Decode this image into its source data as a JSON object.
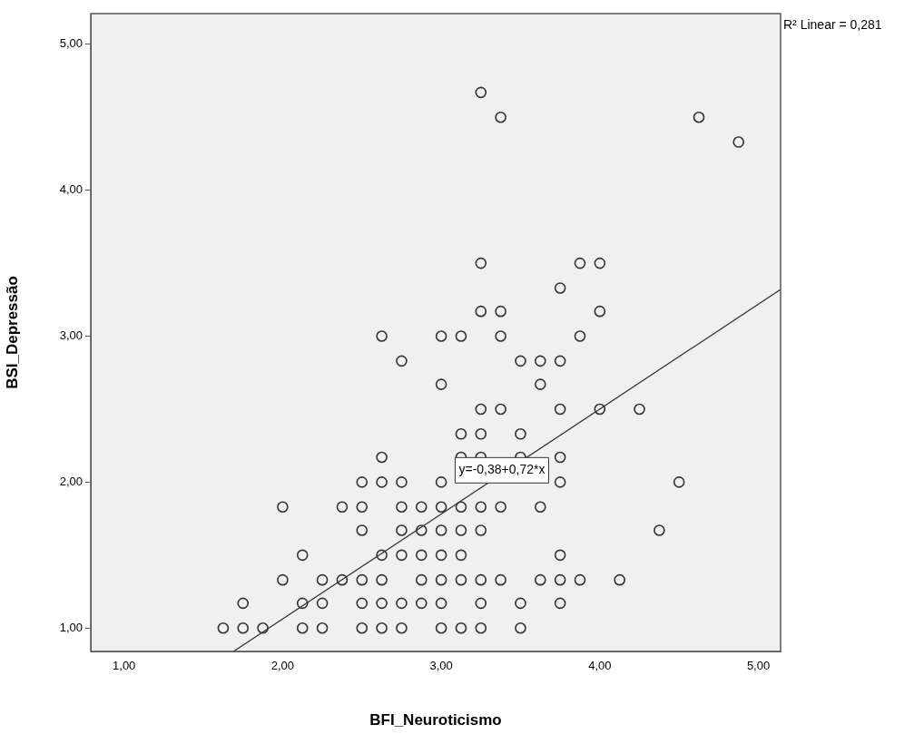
{
  "chart_data": {
    "type": "scatter",
    "xlabel": "BFI_Neuroticismo",
    "ylabel": "BSI_Depressão",
    "xlim": [
      0.79,
      5.14
    ],
    "ylim": [
      0.84,
      5.21
    ],
    "xticks": [
      {
        "value": 1,
        "label": "1,00"
      },
      {
        "value": 2,
        "label": "2,00"
      },
      {
        "value": 3,
        "label": "3,00"
      },
      {
        "value": 4,
        "label": "4,00"
      },
      {
        "value": 5,
        "label": "5,00"
      }
    ],
    "yticks": [
      {
        "value": 1,
        "label": "1,00"
      },
      {
        "value": 2,
        "label": "2,00"
      },
      {
        "value": 3,
        "label": "3,00"
      },
      {
        "value": 4,
        "label": "4,00"
      },
      {
        "value": 5,
        "label": "5,00"
      }
    ],
    "grid": false,
    "series": [
      {
        "type": "scatter",
        "color": "#333333",
        "marker": "circle",
        "x": [
          1.625,
          1.75,
          1.875,
          2.125,
          2.25,
          2.5,
          2.625,
          2.75,
          3.0,
          3.125,
          3.25,
          3.5,
          1.75,
          2.125,
          2.25,
          2.5,
          2.625,
          2.75,
          2.875,
          3.0,
          3.25,
          3.5,
          3.75,
          2.0,
          2.25,
          2.375,
          2.5,
          2.625,
          2.875,
          3.0,
          3.125,
          3.25,
          3.375,
          3.625,
          3.75,
          3.875,
          4.125,
          2.125,
          2.625,
          2.75,
          2.875,
          3.0,
          3.125,
          3.75,
          2.5,
          2.75,
          2.875,
          3.0,
          3.125,
          3.25,
          4.375,
          2.0,
          2.375,
          2.5,
          2.75,
          2.875,
          3.0,
          3.125,
          3.25,
          3.375,
          3.625,
          2.5,
          2.625,
          2.75,
          3.0,
          3.75,
          4.5,
          2.625,
          3.125,
          3.25,
          3.5,
          3.75,
          3.125,
          3.25,
          3.5,
          3.25,
          3.375,
          3.75,
          4.0,
          4.25,
          3.0,
          3.625,
          2.75,
          3.5,
          3.625,
          3.75,
          2.625,
          3.0,
          3.125,
          3.375,
          3.875,
          3.25,
          3.375,
          4.0,
          3.75,
          3.25,
          3.875,
          4.0,
          4.875,
          3.375,
          4.625,
          3.25
        ],
        "values": [
          1,
          1,
          1,
          1,
          1,
          1,
          1,
          1,
          1,
          1,
          1,
          1,
          1.17,
          1.17,
          1.17,
          1.17,
          1.17,
          1.17,
          1.17,
          1.17,
          1.17,
          1.17,
          1.17,
          1.33,
          1.33,
          1.33,
          1.33,
          1.33,
          1.33,
          1.33,
          1.33,
          1.33,
          1.33,
          1.33,
          1.33,
          1.33,
          1.33,
          1.5,
          1.5,
          1.5,
          1.5,
          1.5,
          1.5,
          1.5,
          1.67,
          1.67,
          1.67,
          1.67,
          1.67,
          1.67,
          1.67,
          1.83,
          1.83,
          1.83,
          1.83,
          1.83,
          1.83,
          1.83,
          1.83,
          1.83,
          1.83,
          2,
          2,
          2,
          2,
          2,
          2,
          2.17,
          2.17,
          2.17,
          2.17,
          2.17,
          2.33,
          2.33,
          2.33,
          2.5,
          2.5,
          2.5,
          2.5,
          2.5,
          2.67,
          2.67,
          2.83,
          2.83,
          2.83,
          2.83,
          3,
          3,
          3,
          3,
          3,
          3.17,
          3.17,
          3.17,
          3.33,
          3.5,
          3.5,
          3.5,
          4.33,
          4.5,
          4.5,
          4.67
        ]
      },
      {
        "type": "line",
        "color": "#333333",
        "x": [
          1.69,
          5.14
        ],
        "values": [
          0.84,
          3.32
        ]
      }
    ],
    "annotations": [
      "R² Linear = 0,281",
      "y=-0,38+0,72*x"
    ]
  }
}
